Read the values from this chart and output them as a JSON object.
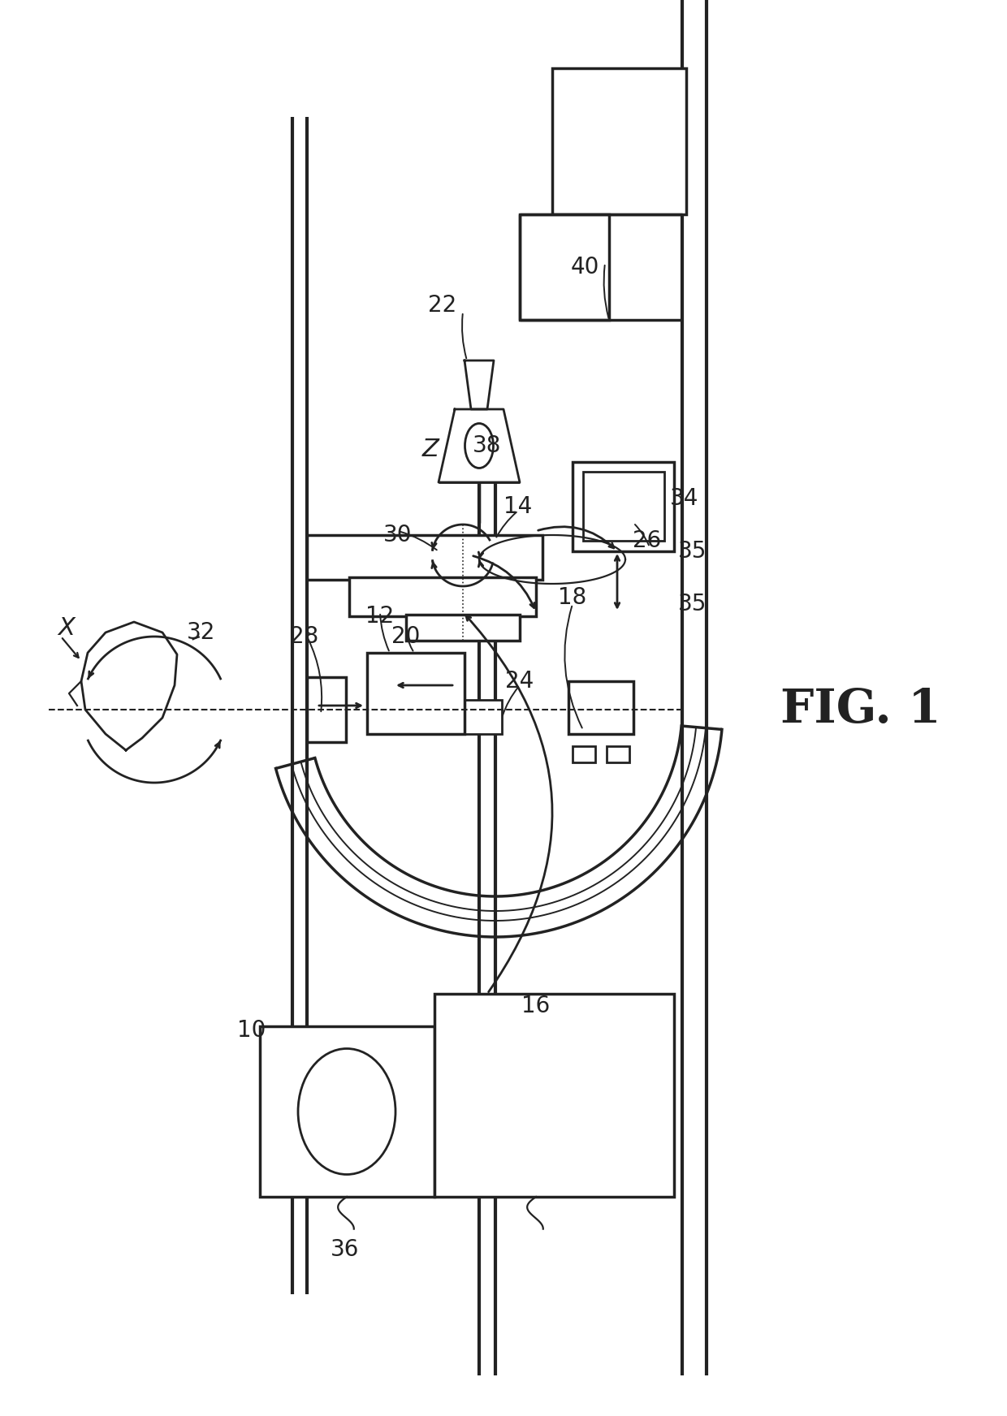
{
  "fig_label": "FIG. 1",
  "background_color": "#ffffff",
  "line_color": "#222222",
  "fig_width": 12.4,
  "fig_height": 17.44,
  "dpi": 100
}
